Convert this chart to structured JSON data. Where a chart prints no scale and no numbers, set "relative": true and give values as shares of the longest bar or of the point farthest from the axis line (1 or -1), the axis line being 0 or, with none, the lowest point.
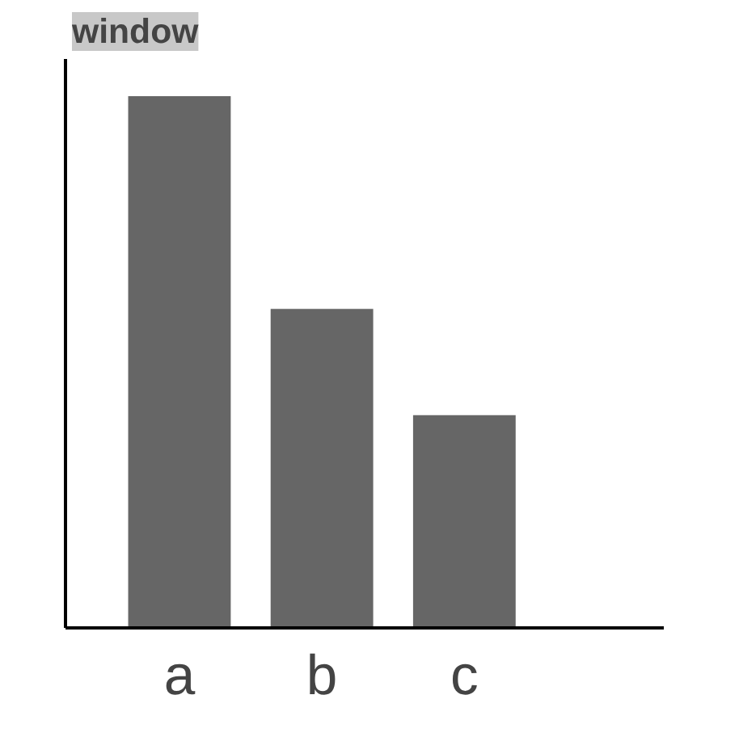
{
  "chart_data": {
    "type": "bar",
    "title": "window",
    "categories": [
      "a",
      "b",
      "c"
    ],
    "relative": true,
    "color": "#666666",
    "values": [
      1,
      0.6,
      0.4
    ],
    "grid": false
  }
}
